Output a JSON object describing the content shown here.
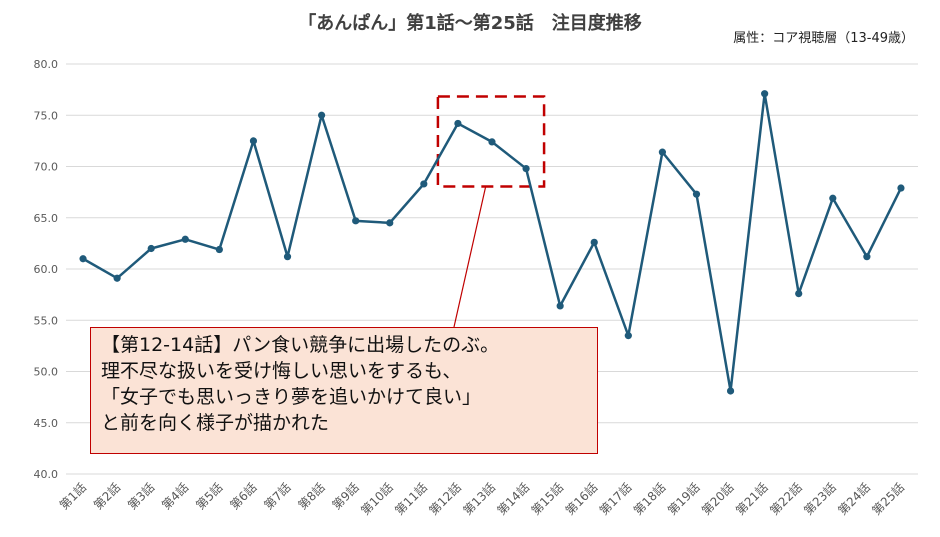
{
  "chart_data": {
    "type": "line",
    "title": "「あんぱん」第1話～第25話　注目度推移",
    "subtitle": "属性：コア視聴層（13-49歳）",
    "categories": [
      "第1話",
      "第2話",
      "第3話",
      "第4話",
      "第5話",
      "第6話",
      "第7話",
      "第8話",
      "第9話",
      "第10話",
      "第11話",
      "第12話",
      "第13話",
      "第14話",
      "第15話",
      "第16話",
      "第17話",
      "第18話",
      "第19話",
      "第20話",
      "第21話",
      "第22話",
      "第23話",
      "第24話",
      "第25話"
    ],
    "values": [
      61.0,
      59.1,
      62.0,
      62.9,
      61.9,
      72.5,
      61.2,
      75.0,
      64.7,
      64.5,
      68.3,
      74.2,
      72.4,
      69.8,
      56.4,
      62.6,
      53.5,
      71.4,
      67.3,
      48.1,
      77.1,
      57.6,
      66.9,
      61.2,
      67.9
    ],
    "ylim": [
      40,
      80
    ],
    "yticks": [
      "40.0",
      "45.0",
      "50.0",
      "55.0",
      "60.0",
      "65.0",
      "70.0",
      "75.0",
      "80.0"
    ],
    "grid": true,
    "line_color": "#1f5a7a",
    "grid_color": "#d9d9d9",
    "annotation": {
      "highlight_range": [
        "第12話",
        "第14話"
      ],
      "lines": [
        "【第12-14話】パン食い競争に出場したのぶ。",
        "理不尽な扱いを受け悔しい思いをするも、",
        "「女子でも思いっきり夢を追いかけて良い」",
        "と前を向く様子が描かれた"
      ],
      "box_color": "#fbe3d6",
      "border_color": "#c00000"
    }
  }
}
